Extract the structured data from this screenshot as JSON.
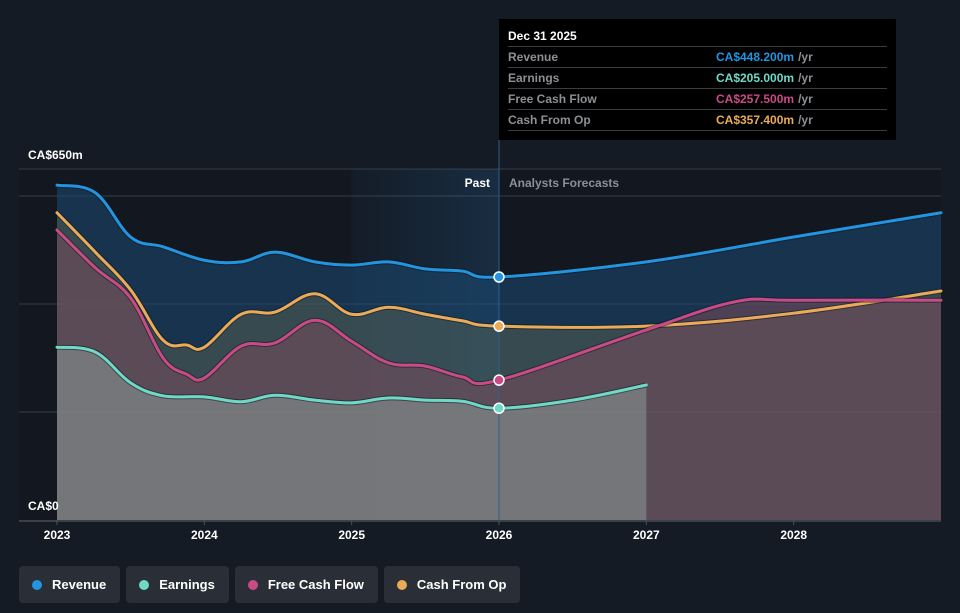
{
  "chart_data": {
    "type": "area",
    "title": "",
    "xlabel": "",
    "ylabel": "",
    "currency_prefix": "CA$",
    "ylim": [
      0,
      650
    ],
    "xlim": [
      2023,
      2029
    ],
    "y_axis_labels": {
      "top": "CA$650m",
      "bottom": "CA$0"
    },
    "y_gridlines": [
      0,
      200,
      400,
      600,
      650
    ],
    "x_ticks": [
      2023,
      2024,
      2025,
      2026,
      2027,
      2028
    ],
    "x_tick_labels": [
      "2023",
      "2024",
      "2025",
      "2026",
      "2027",
      "2028"
    ],
    "grid": true,
    "past_cutoff": 2026,
    "highlight_start": 2025,
    "section_labels": {
      "past": "Past",
      "forecast": "Analysts Forecasts"
    },
    "legend_placement": "bottom-left",
    "series": [
      {
        "name": "Revenue",
        "key": "revenue",
        "color": "#2394df",
        "past": [
          [
            2023.0,
            620
          ],
          [
            2023.26,
            606
          ],
          [
            2023.5,
            524
          ],
          [
            2023.72,
            506
          ],
          [
            2024.0,
            481
          ],
          [
            2024.25,
            478
          ],
          [
            2024.48,
            496
          ],
          [
            2024.75,
            478
          ],
          [
            2025.0,
            472
          ],
          [
            2025.25,
            478
          ],
          [
            2025.5,
            465
          ],
          [
            2025.75,
            461
          ],
          [
            2026.0,
            450
          ]
        ],
        "forecast": [
          [
            2026.0,
            450
          ],
          [
            2027.0,
            478
          ],
          [
            2028.0,
            524
          ],
          [
            2029.0,
            569
          ]
        ]
      },
      {
        "name": "Cash From Op",
        "key": "cfo",
        "color": "#e9aa5a",
        "past": [
          [
            2023.0,
            569
          ],
          [
            2023.26,
            496
          ],
          [
            2023.5,
            426
          ],
          [
            2023.72,
            333
          ],
          [
            2023.88,
            324
          ],
          [
            2024.0,
            320
          ],
          [
            2024.25,
            381
          ],
          [
            2024.48,
            385
          ],
          [
            2024.75,
            419
          ],
          [
            2025.0,
            381
          ],
          [
            2025.25,
            394
          ],
          [
            2025.5,
            381
          ],
          [
            2025.75,
            369
          ],
          [
            2026.0,
            359
          ]
        ],
        "forecast": [
          [
            2026.0,
            359
          ],
          [
            2027.0,
            359
          ],
          [
            2028.0,
            383
          ],
          [
            2029.0,
            424
          ]
        ]
      },
      {
        "name": "Free Cash Flow",
        "key": "fcf",
        "color": "#c94b86",
        "past": [
          [
            2023.0,
            537
          ],
          [
            2023.26,
            467
          ],
          [
            2023.5,
            411
          ],
          [
            2023.72,
            300
          ],
          [
            2023.88,
            270
          ],
          [
            2024.0,
            263
          ],
          [
            2024.25,
            322
          ],
          [
            2024.48,
            328
          ],
          [
            2024.75,
            370
          ],
          [
            2025.0,
            331
          ],
          [
            2025.25,
            291
          ],
          [
            2025.5,
            285
          ],
          [
            2025.75,
            265
          ],
          [
            2026.0,
            259
          ]
        ],
        "forecast": [
          [
            2026.0,
            259
          ],
          [
            2027.0,
            352
          ],
          [
            2027.6,
            404
          ],
          [
            2028.0,
            407
          ],
          [
            2029.0,
            407
          ]
        ]
      },
      {
        "name": "Earnings",
        "key": "earnings",
        "color": "#6fd9c7",
        "past": [
          [
            2023.0,
            320
          ],
          [
            2023.26,
            311
          ],
          [
            2023.5,
            254
          ],
          [
            2023.72,
            230
          ],
          [
            2024.0,
            228
          ],
          [
            2024.25,
            219
          ],
          [
            2024.48,
            231
          ],
          [
            2024.75,
            222
          ],
          [
            2025.0,
            217
          ],
          [
            2025.25,
            226
          ],
          [
            2025.5,
            222
          ],
          [
            2025.75,
            220
          ],
          [
            2026.0,
            207
          ]
        ],
        "forecast": [
          [
            2026.0,
            207
          ],
          [
            2026.5,
            222
          ],
          [
            2027.0,
            250
          ]
        ]
      }
    ],
    "markers_at": 2026.0
  },
  "tooltip": {
    "date": "Dec 31 2025",
    "unit": "/yr",
    "rows": [
      {
        "label": "Revenue",
        "value": "CA$448.200m",
        "color": "#2394df"
      },
      {
        "label": "Earnings",
        "value": "CA$205.000m",
        "color": "#6fd9c7"
      },
      {
        "label": "Free Cash Flow",
        "value": "CA$257.500m",
        "color": "#c94b86"
      },
      {
        "label": "Cash From Op",
        "value": "CA$357.400m",
        "color": "#e9aa5a"
      }
    ]
  },
  "legend": [
    {
      "label": "Revenue",
      "color": "#2394df"
    },
    {
      "label": "Earnings",
      "color": "#6fd9c7"
    },
    {
      "label": "Free Cash Flow",
      "color": "#c94b86"
    },
    {
      "label": "Cash From Op",
      "color": "#e9aa5a"
    }
  ]
}
